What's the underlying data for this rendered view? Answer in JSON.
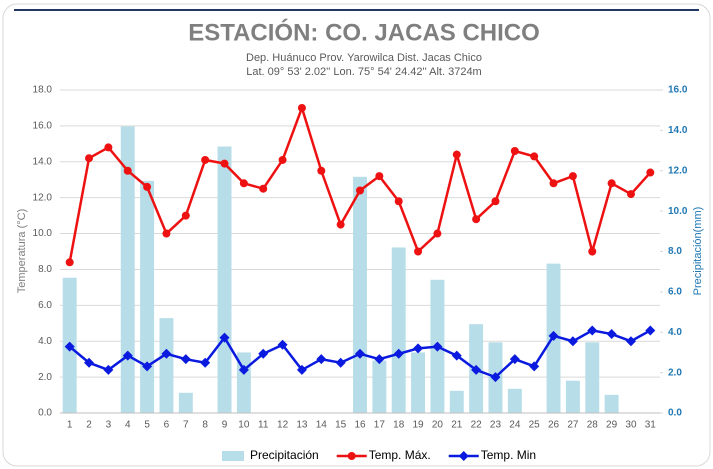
{
  "chart_data": {
    "type": "combo",
    "title": "ESTACIÓN: CO. JACAS CHICO",
    "subtitle": [
      "Dep. Huánuco Prov. Yarowilca Dist. Jacas Chico",
      "Lat. 09° 53' 2.02'' Lon. 75° 54' 24.42'' Alt. 3724m"
    ],
    "ylabel": "Temperatura (°C)",
    "y2label": "Precipitación(mm)",
    "categories": [
      "1",
      "2",
      "3",
      "4",
      "5",
      "6",
      "7",
      "8",
      "9",
      "10",
      "11",
      "12",
      "13",
      "14",
      "15",
      "16",
      "17",
      "18",
      "19",
      "20",
      "21",
      "22",
      "23",
      "24",
      "25",
      "26",
      "27",
      "28",
      "29",
      "30",
      "31"
    ],
    "ylim": [
      0,
      18
    ],
    "yticks": [
      {
        "value": 0,
        "label": "0.0"
      },
      {
        "value": 2,
        "label": "2.0"
      },
      {
        "value": 4,
        "label": "4.0"
      },
      {
        "value": 6,
        "label": "6.0"
      },
      {
        "value": 8,
        "label": "8.0"
      },
      {
        "value": 10,
        "label": "10.0"
      },
      {
        "value": 12,
        "label": "12.0"
      },
      {
        "value": 14,
        "label": "14.0"
      },
      {
        "value": 16,
        "label": "16.0"
      },
      {
        "value": 18,
        "label": "18.0"
      }
    ],
    "y2lim": [
      0,
      16
    ],
    "y2ticks": [
      {
        "value": 0,
        "label": "0.0"
      },
      {
        "value": 2,
        "label": "2.0"
      },
      {
        "value": 4,
        "label": "4.0"
      },
      {
        "value": 6,
        "label": "6.0"
      },
      {
        "value": 8,
        "label": "8.0"
      },
      {
        "value": 10,
        "label": "10.0"
      },
      {
        "value": 12,
        "label": "12.0"
      },
      {
        "value": 14,
        "label": "14.0"
      },
      {
        "value": 16,
        "label": "16.0"
      }
    ],
    "grid": true,
    "legend": "bottom",
    "series": [
      {
        "name": "Precipitación",
        "type": "bar",
        "axis": "y2",
        "color": "#b7dde8",
        "values": [
          6.7,
          0,
          0,
          14.2,
          11.5,
          4.7,
          1.0,
          0,
          13.2,
          3.0,
          0,
          0,
          0,
          0,
          0,
          11.7,
          2.6,
          8.2,
          3.0,
          6.6,
          1.1,
          4.4,
          3.5,
          1.2,
          0,
          7.4,
          1.6,
          3.5,
          0.9,
          0,
          0
        ]
      },
      {
        "name": "Temp. Máx.",
        "type": "line",
        "marker": "circle",
        "color": "#ee1111",
        "values": [
          8.4,
          14.2,
          14.8,
          13.5,
          12.6,
          10.0,
          11.0,
          14.1,
          13.9,
          12.8,
          12.5,
          14.1,
          17.0,
          13.5,
          10.5,
          12.4,
          13.2,
          11.8,
          9.0,
          10.0,
          14.4,
          10.8,
          11.8,
          14.6,
          14.3,
          12.8,
          13.2,
          9.0,
          12.8,
          12.2,
          13.4
        ]
      },
      {
        "name": "Temp. Min",
        "type": "line",
        "marker": "diamond",
        "color": "#0a1adf",
        "values": [
          3.7,
          2.8,
          2.4,
          3.2,
          2.6,
          3.3,
          3.0,
          2.8,
          4.2,
          2.4,
          3.3,
          3.8,
          2.4,
          3.0,
          2.8,
          3.3,
          3.0,
          3.3,
          3.6,
          3.7,
          3.2,
          2.4,
          2.0,
          3.0,
          2.6,
          4.3,
          4.0,
          4.6,
          4.4,
          4.0,
          4.6
        ]
      }
    ]
  }
}
